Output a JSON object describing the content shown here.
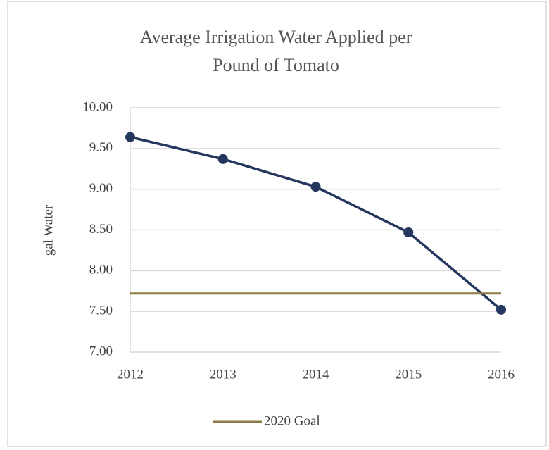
{
  "chart_data": {
    "type": "line",
    "title": [
      "Average Irrigation Water Applied per",
      "Pound of Tomato"
    ],
    "y_label": "gal Water",
    "categories": [
      "2012",
      "2013",
      "2014",
      "2015",
      "2016"
    ],
    "series": [
      {
        "color": "#25375e",
        "values": [
          9.64,
          9.37,
          9.03,
          8.47,
          7.52
        ],
        "markers": true
      },
      {
        "name": "2020 Goal",
        "color": "#8c7b42",
        "values": [
          7.72,
          7.72,
          7.72,
          7.72,
          7.72
        ],
        "markers": false
      }
    ],
    "ylim": [
      7,
      10
    ],
    "yticks": [
      {
        "value": 7,
        "label": "7.00"
      },
      {
        "value": 7.5,
        "label": "7.50"
      },
      {
        "value": 8,
        "label": "8.00"
      },
      {
        "value": 8.5,
        "label": "8.50"
      },
      {
        "value": 9,
        "label": "9.00"
      },
      {
        "value": 9.5,
        "label": "9.50"
      },
      {
        "value": 10,
        "label": "10.00"
      }
    ],
    "grid": true,
    "legend": "bottom"
  }
}
